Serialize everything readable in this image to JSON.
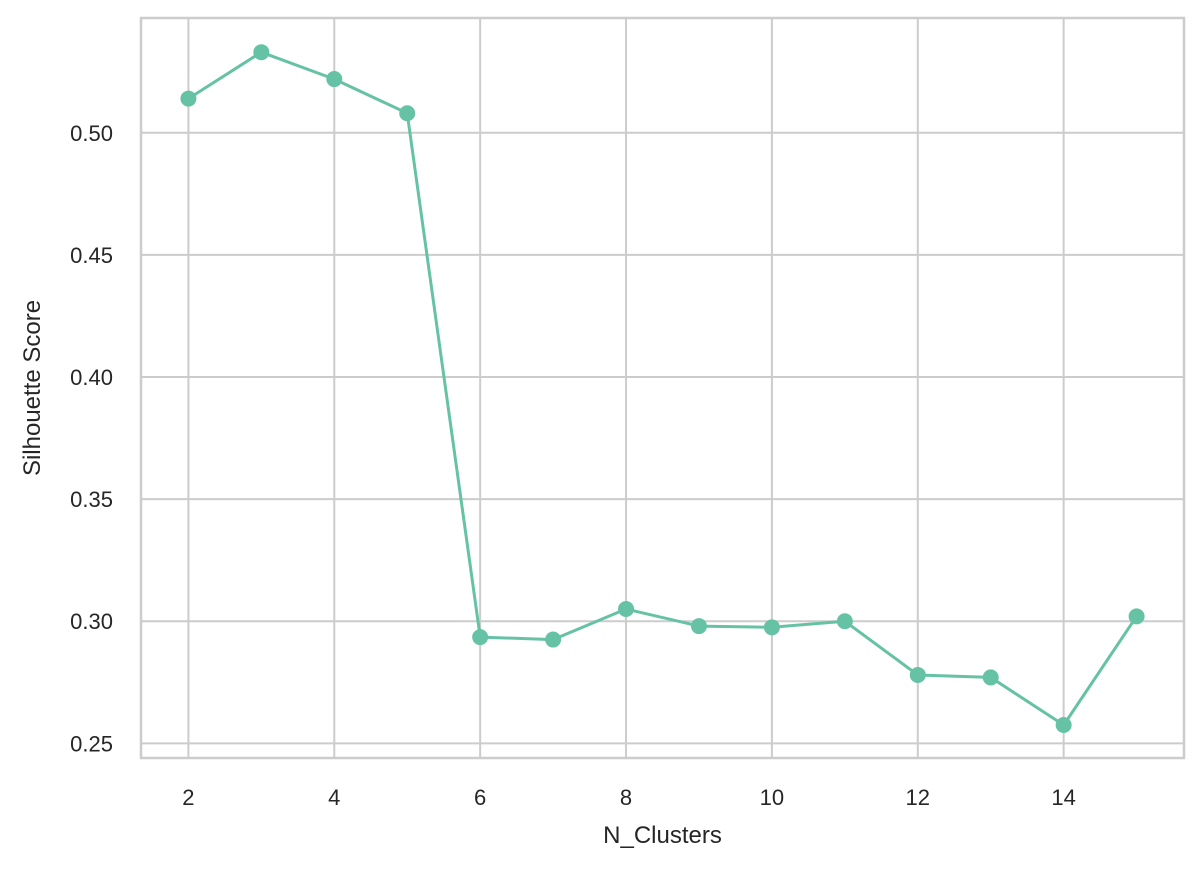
{
  "chart_data": {
    "type": "line",
    "title": "",
    "xlabel": "N_Clusters",
    "ylabel": "Silhouette Score",
    "xlim": [
      1.35,
      15.65
    ],
    "ylim": [
      0.244,
      0.547
    ],
    "xticks": [
      2,
      4,
      6,
      8,
      10,
      12,
      14
    ],
    "xtick_labels": [
      "2",
      "4",
      "6",
      "8",
      "10",
      "12",
      "14"
    ],
    "yticks": [
      0.25,
      0.3,
      0.35,
      0.4,
      0.45,
      0.5
    ],
    "ytick_labels": [
      "0.25",
      "0.30",
      "0.35",
      "0.40",
      "0.45",
      "0.50"
    ],
    "grid": true,
    "legend": false,
    "series": [
      {
        "color": "#66c2a5",
        "marker": "circle",
        "x": [
          2,
          3,
          4,
          5,
          6,
          7,
          8,
          9,
          10,
          11,
          12,
          13,
          14,
          15
        ],
        "y": [
          0.514,
          0.533,
          0.522,
          0.508,
          0.2935,
          0.2925,
          0.305,
          0.298,
          0.2975,
          0.3,
          0.278,
          0.277,
          0.2575,
          0.302
        ]
      }
    ]
  }
}
